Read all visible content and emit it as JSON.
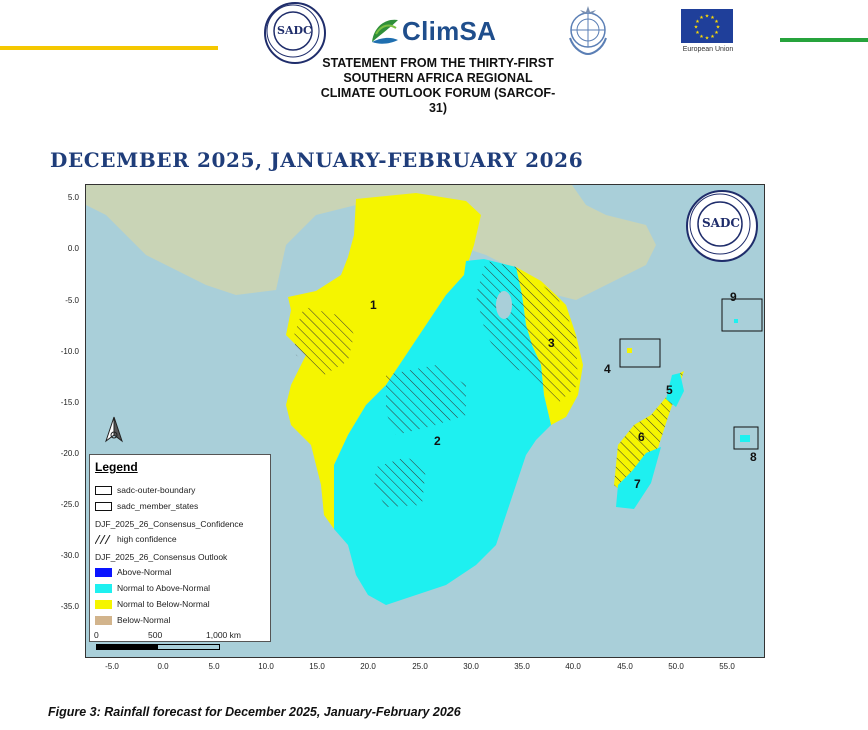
{
  "header": {
    "logos": {
      "sadc": "SADC",
      "climsa": "ClimSA",
      "un_icon": "un-emblem-icon",
      "eu": "European Union"
    },
    "statement_lines": [
      "STATEMENT FROM THE THIRTY-FIRST",
      "SOUTHERN AFRICA REGIONAL",
      "CLIMATE OUTLOOK FORUM (SARCOF-",
      "31)"
    ]
  },
  "period_title": "DECEMBER  2025, JANUARY-FEBRUARY 2026",
  "map": {
    "y_ticks": [
      "5.0",
      "0.0",
      "-5.0",
      "-10.0",
      "-15.0",
      "-20.0",
      "-25.0",
      "-30.0",
      "-35.0"
    ],
    "x_ticks": [
      "-5.0",
      "0.0",
      "5.0",
      "10.0",
      "15.0",
      "20.0",
      "25.0",
      "30.0",
      "35.0",
      "40.0",
      "45.0",
      "50.0",
      "55.0"
    ],
    "region_labels": [
      "1",
      "2",
      "3",
      "4",
      "5",
      "6",
      "7",
      "8",
      "9"
    ],
    "inset_logo": "SADC",
    "colors": {
      "ocean": "#a9cfd9",
      "land_other": "#c9d4b6",
      "above_normal": "#0a14ff",
      "normal_to_above": "#1ef0f0",
      "normal_to_below": "#f5f500",
      "below_normal": "#d2b48c"
    }
  },
  "legend": {
    "title": "Legend",
    "items": [
      "sadc-outer-boundary",
      "sadc_member_states",
      "DJF_2025_26_Consensus_Confidence",
      "high confidence",
      "DJF_2025_26_Consensus Outlook",
      "Above-Normal",
      "Normal to Above-Normal",
      "Normal to Below-Normal",
      "Below-Normal"
    ]
  },
  "scale": {
    "labels": [
      "0",
      "500",
      "1,000 km"
    ]
  },
  "caption": "Figure 3: Rainfall forecast for December 2025, January-February 2026"
}
